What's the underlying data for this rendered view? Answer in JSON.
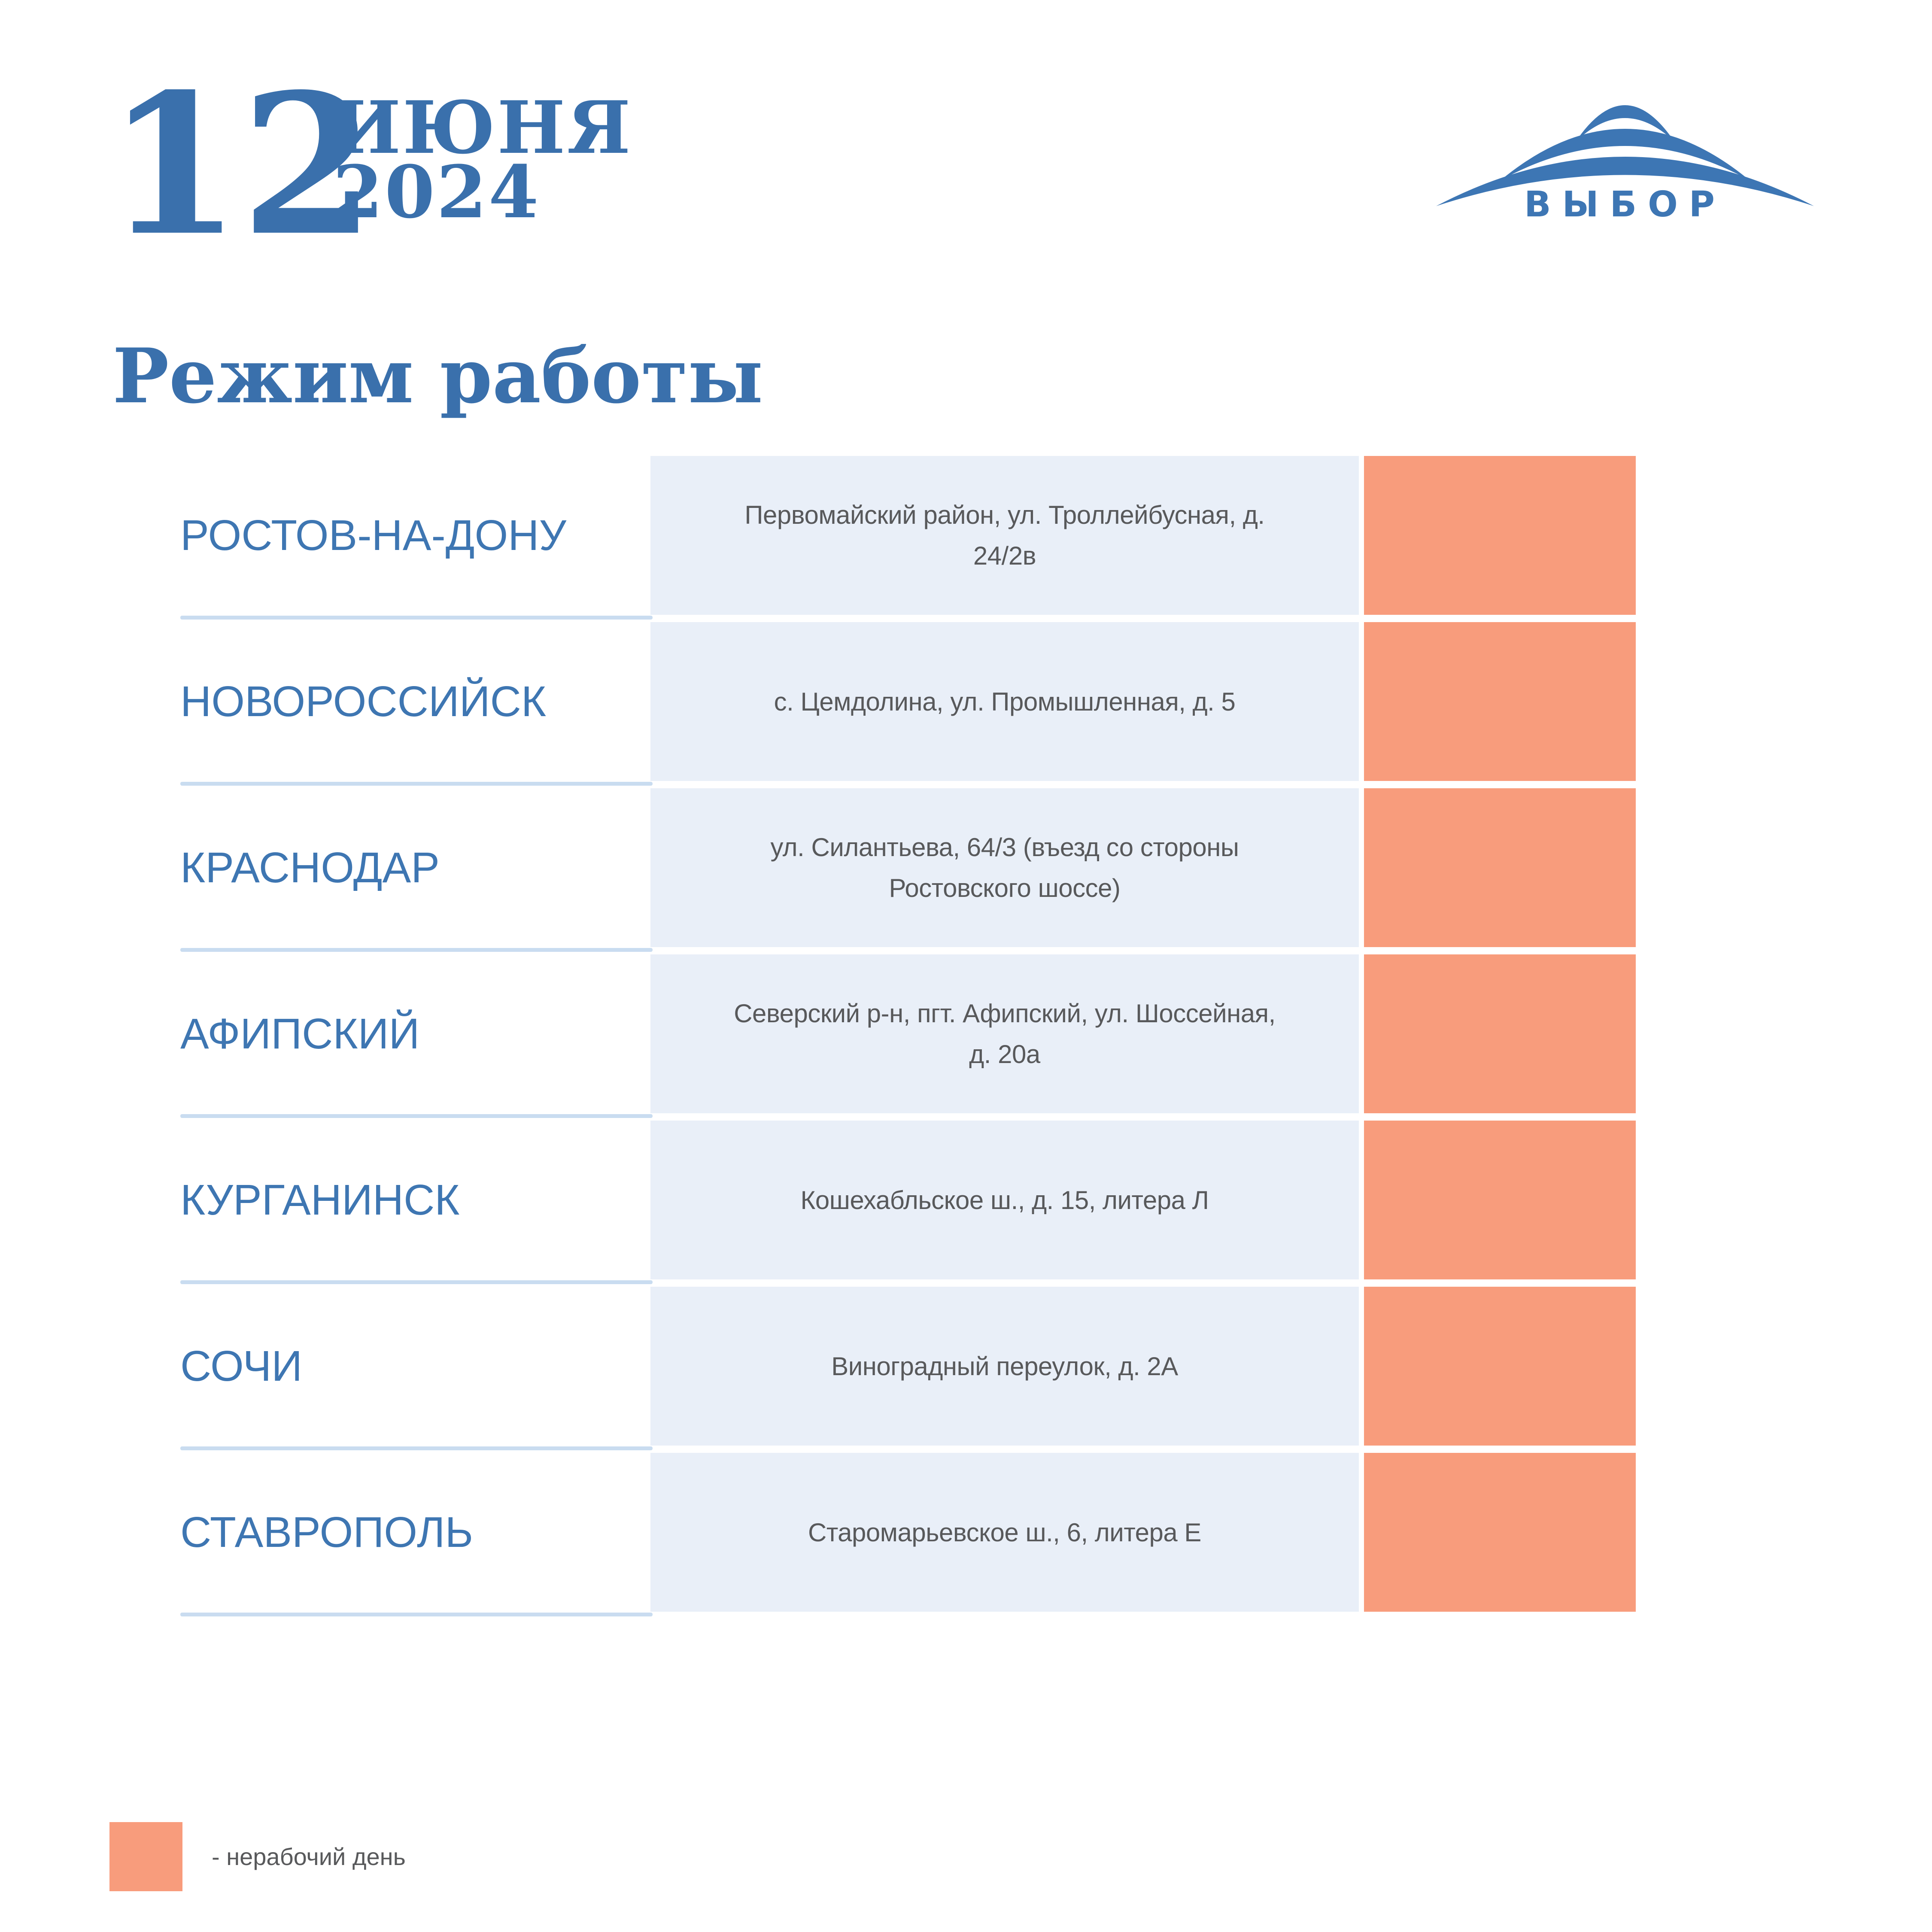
{
  "date": {
    "day": "12",
    "month": "ИЮНЯ",
    "year": "2024"
  },
  "logo": {
    "brand": "ВЫБОР",
    "mark": "triple-arc-swoosh"
  },
  "page_title": "Режим работы",
  "schedule": {
    "rows": [
      {
        "city": "РОСТОВ-НА-ДОНУ",
        "address": "Первомайский район, ул. Троллейбусная, д. 24/2в",
        "day_status": "non-working"
      },
      {
        "city": "НОВОРОССИЙСК",
        "address": "с. Цемдолина, ул. Промышленная, д. 5",
        "day_status": "non-working"
      },
      {
        "city": "КРАСНОДАР",
        "address": "ул. Силантьева, 64/3 (въезд со стороны Ростовского шоссе)",
        "day_status": "non-working"
      },
      {
        "city": "АФИПСКИЙ",
        "address": "Северский р-н, пгт. Афипский, ул. Шоссейная, д. 20а",
        "day_status": "non-working"
      },
      {
        "city": "КУРГАНИНСК",
        "address": "Кошехабльское ш., д. 15, литера Л",
        "day_status": "non-working"
      },
      {
        "city": "СОЧИ",
        "address": "Виноградный переулок, д. 2А",
        "day_status": "non-working"
      },
      {
        "city": "СТАВРОПОЛЬ",
        "address": "Старомарьевское ш., 6, литера Е",
        "day_status": "non-working"
      }
    ]
  },
  "legend": {
    "label": "- нерабочий день"
  },
  "colors": {
    "accent_blue": "#3A70AC",
    "city_blue": "#3E76B2",
    "non_working_orange": "#F89C7C",
    "address_bg": "#E9EFF8",
    "divider_blue": "#C9DCF0",
    "text_gray": "#58595B"
  }
}
